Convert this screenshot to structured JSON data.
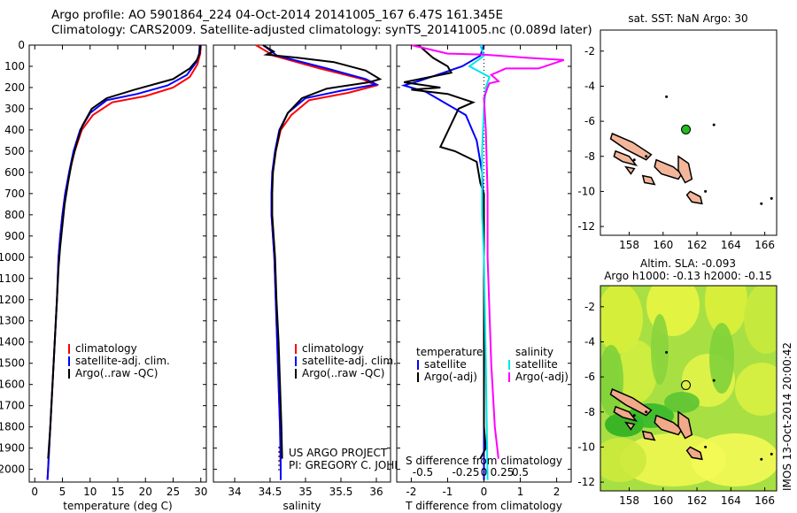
{
  "header": {
    "title_line1": "Argo profile: AO 5901864_224 04-Oct-2014 20141005_167 6.47S 161.345E",
    "title_line2": "Climatology: CARS2009. Satellite-adjusted climatology: synTS_20141005.nc (0.089d later)"
  },
  "chart_data": [
    {
      "type": "line",
      "panel": "temperature",
      "xlabel": "temperature (deg C)",
      "ylabel": "",
      "xlim": [
        -1,
        31
      ],
      "ylim": [
        2060,
        0
      ],
      "y_reversed": true,
      "xticks": [
        0,
        5,
        10,
        15,
        20,
        25,
        30
      ],
      "yticks": [
        0,
        100,
        200,
        300,
        400,
        500,
        600,
        700,
        800,
        900,
        1000,
        1100,
        1200,
        1300,
        1400,
        1500,
        1600,
        1700,
        1800,
        1900,
        2000
      ],
      "legend": {
        "placement": "lower-center",
        "entries": [
          "climatology",
          "satellite-adj. clim.",
          "Argo(..raw -QC)"
        ]
      },
      "series": [
        {
          "name": "climatology",
          "color": "#ff0000",
          "points": [
            [
              30,
              0
            ],
            [
              29.9,
              40
            ],
            [
              29.4,
              90
            ],
            [
              28,
              150
            ],
            [
              25,
              200
            ],
            [
              20,
              240
            ],
            [
              14,
              270
            ],
            [
              10.5,
              330
            ],
            [
              8.5,
              400
            ],
            [
              7.2,
              500
            ],
            [
              6.3,
              600
            ],
            [
              5.5,
              700
            ],
            [
              5,
              800
            ],
            [
              4.6,
              900
            ],
            [
              4.3,
              1000
            ],
            [
              4,
              1200
            ],
            [
              3.6,
              1400
            ],
            [
              3.2,
              1600
            ],
            [
              2.8,
              1800
            ],
            [
              2.4,
              2000
            ],
            [
              2.3,
              2050
            ]
          ]
        },
        {
          "name": "satellite-adj. clim.",
          "color": "#0000ff",
          "points": [
            [
              29.8,
              0
            ],
            [
              29.7,
              40
            ],
            [
              29.2,
              80
            ],
            [
              27.5,
              140
            ],
            [
              24,
              190
            ],
            [
              18.5,
              230
            ],
            [
              13,
              260
            ],
            [
              10,
              320
            ],
            [
              8.2,
              400
            ],
            [
              7,
              500
            ],
            [
              6.2,
              600
            ],
            [
              5.5,
              700
            ],
            [
              5,
              800
            ],
            [
              4.6,
              900
            ],
            [
              4.3,
              1000
            ],
            [
              4,
              1200
            ],
            [
              3.6,
              1400
            ],
            [
              3.2,
              1600
            ],
            [
              2.8,
              1800
            ],
            [
              2.4,
              2000
            ],
            [
              2.3,
              2050
            ]
          ]
        },
        {
          "name": "Argo(..raw -QC)",
          "color": "#000000",
          "points": [
            [
              29.9,
              0
            ],
            [
              29.8,
              40
            ],
            [
              29.3,
              70
            ],
            [
              28,
              110
            ],
            [
              25,
              160
            ],
            [
              18,
              210
            ],
            [
              13,
              250
            ],
            [
              10.3,
              300
            ],
            [
              8.6,
              380
            ],
            [
              7.6,
              460
            ],
            [
              6.7,
              550
            ],
            [
              6,
              650
            ],
            [
              5.4,
              750
            ],
            [
              5,
              850
            ],
            [
              4.6,
              950
            ],
            [
              4.3,
              1050
            ],
            [
              4,
              1200
            ],
            [
              3.6,
              1400
            ],
            [
              3.2,
              1600
            ],
            [
              2.8,
              1800
            ],
            [
              2.4,
              1950
            ]
          ]
        }
      ]
    },
    {
      "type": "line",
      "panel": "salinity",
      "xlabel": "salinity",
      "ylabel": "",
      "xlim": [
        33.7,
        36.2
      ],
      "ylim": [
        2060,
        0
      ],
      "y_reversed": true,
      "xticks": [
        34,
        34.5,
        35,
        35.5,
        36
      ],
      "xtick_labels": [
        "34",
        "34.5",
        "35",
        "35.5",
        "36"
      ],
      "legend": {
        "placement": "lower-center",
        "entries": [
          "climatology",
          "satellite-adj. clim.",
          "Argo(..raw -QC)"
        ]
      },
      "annotations": [
        "US ARGO PROJECT",
        "PI: GREGORY C. JOHNSON"
      ],
      "series": [
        {
          "name": "climatology",
          "color": "#ff0000",
          "points": [
            [
              34.3,
              0
            ],
            [
              34.55,
              50
            ],
            [
              35.2,
              110
            ],
            [
              35.8,
              160
            ],
            [
              36,
              190
            ],
            [
              35.6,
              225
            ],
            [
              35.05,
              260
            ],
            [
              34.8,
              330
            ],
            [
              34.65,
              400
            ],
            [
              34.58,
              500
            ],
            [
              34.54,
              600
            ],
            [
              34.52,
              700
            ],
            [
              34.52,
              800
            ],
            [
              34.54,
              900
            ],
            [
              34.56,
              1000
            ],
            [
              34.58,
              1200
            ],
            [
              34.6,
              1400
            ],
            [
              34.62,
              1600
            ],
            [
              34.64,
              1800
            ],
            [
              34.65,
              2000
            ],
            [
              34.65,
              2050
            ]
          ]
        },
        {
          "name": "satellite-adj. clim.",
          "color": "#0000ff",
          "points": [
            [
              34.4,
              0
            ],
            [
              34.6,
              50
            ],
            [
              35.3,
              110
            ],
            [
              35.85,
              160
            ],
            [
              36,
              185
            ],
            [
              35.5,
              215
            ],
            [
              35,
              250
            ],
            [
              34.75,
              320
            ],
            [
              34.63,
              400
            ],
            [
              34.57,
              500
            ],
            [
              34.53,
              600
            ],
            [
              34.52,
              700
            ],
            [
              34.52,
              800
            ],
            [
              34.54,
              900
            ],
            [
              34.56,
              1000
            ],
            [
              34.58,
              1200
            ],
            [
              34.6,
              1400
            ],
            [
              34.62,
              1600
            ],
            [
              34.64,
              1800
            ],
            [
              34.65,
              2000
            ],
            [
              34.65,
              2050
            ]
          ]
        },
        {
          "name": "Argo(..raw -QC)",
          "color": "#000000",
          "points": [
            [
              34.4,
              0
            ],
            [
              34.55,
              30
            ],
            [
              34.45,
              45
            ],
            [
              34.9,
              60
            ],
            [
              35.4,
              80
            ],
            [
              35.85,
              120
            ],
            [
              36.05,
              160
            ],
            [
              35.9,
              175
            ],
            [
              35.3,
              205
            ],
            [
              34.95,
              250
            ],
            [
              34.75,
              320
            ],
            [
              34.64,
              400
            ],
            [
              34.58,
              500
            ],
            [
              34.54,
              600
            ],
            [
              34.53,
              700
            ],
            [
              34.53,
              800
            ],
            [
              34.55,
              900
            ],
            [
              34.57,
              1000
            ],
            [
              34.59,
              1200
            ],
            [
              34.62,
              1400
            ],
            [
              34.64,
              1600
            ],
            [
              34.66,
              1800
            ],
            [
              34.67,
              1950
            ]
          ]
        }
      ]
    },
    {
      "type": "line",
      "panel": "difference",
      "xlabel": "T difference from climatology",
      "xlabel_top": "S difference from climatology",
      "ylabel": "",
      "xlim": [
        -2.4,
        2.4
      ],
      "ylim": [
        2060,
        0
      ],
      "y_reversed": true,
      "xticks": [
        -2,
        -1,
        0,
        1,
        2
      ],
      "xtick_labels": [
        "-2",
        "-1",
        "0",
        "1",
        "2"
      ],
      "xticks_top_labels": [
        "-0.5",
        "-0.25",
        "0",
        "0.25",
        "0.5"
      ],
      "legend": {
        "placement": "lower-center",
        "groups": [
          "temperature",
          "salinity"
        ],
        "entries": [
          "satellite",
          "Argo(-adj)",
          "satellite",
          "Argo(-adj)"
        ]
      },
      "series": [
        {
          "name": "satellite",
          "group": "temperature",
          "color": "#0000ff",
          "points": [
            [
              0,
              0
            ],
            [
              -0.1,
              50
            ],
            [
              -0.6,
              100
            ],
            [
              -1.8,
              170
            ],
            [
              -2.2,
              190
            ],
            [
              -1.6,
              220
            ],
            [
              -0.5,
              330
            ],
            [
              -0.2,
              450
            ],
            [
              -0.05,
              600
            ],
            [
              0,
              800
            ],
            [
              0,
              1200
            ],
            [
              0,
              2050
            ]
          ]
        },
        {
          "name": "Argo(-adj)",
          "group": "temperature",
          "color": "#000000",
          "points": [
            [
              -1.8,
              0
            ],
            [
              -1.6,
              30
            ],
            [
              -1.4,
              60
            ],
            [
              -1,
              100
            ],
            [
              -0.9,
              130
            ],
            [
              -2.2,
              175
            ],
            [
              -1.2,
              200
            ],
            [
              -2.0,
              210
            ],
            [
              -1.0,
              230
            ],
            [
              -0.3,
              270
            ],
            [
              -0.7,
              300
            ],
            [
              -1.2,
              480
            ],
            [
              -0.8,
              500
            ],
            [
              -0.2,
              550
            ],
            [
              -0.1,
              650
            ],
            [
              0,
              700
            ],
            [
              0,
              1000
            ],
            [
              0,
              1500
            ],
            [
              0,
              1800
            ],
            [
              0.05,
              1900
            ],
            [
              -0.1,
              1950
            ]
          ]
        },
        {
          "name": "satellite",
          "group": "salinity",
          "color": "#00e5e5",
          "points": [
            [
              -0.1,
              0
            ],
            [
              0,
              50
            ],
            [
              -0.4,
              100
            ],
            [
              0.15,
              150
            ],
            [
              0.05,
              200
            ],
            [
              0,
              300
            ],
            [
              -0.05,
              500
            ],
            [
              -0.05,
              800
            ],
            [
              0,
              1000
            ],
            [
              0.05,
              1500
            ],
            [
              0.1,
              2050
            ]
          ]
        },
        {
          "name": "Argo(-adj)",
          "group": "salinity",
          "color": "#ff00ff",
          "points": [
            [
              -2,
              0
            ],
            [
              -1,
              40
            ],
            [
              0,
              45
            ],
            [
              1.2,
              60
            ],
            [
              2.2,
              70
            ],
            [
              1.5,
              110
            ],
            [
              0.6,
              110
            ],
            [
              0.2,
              140
            ],
            [
              0.4,
              170
            ],
            [
              0.15,
              180
            ],
            [
              0.1,
              200
            ],
            [
              0,
              250
            ],
            [
              0.05,
              400
            ],
            [
              0.1,
              700
            ],
            [
              0.1,
              1000
            ],
            [
              0.2,
              1500
            ],
            [
              0.3,
              1800
            ],
            [
              0.4,
              1950
            ]
          ]
        }
      ]
    },
    {
      "type": "scatter",
      "panel": "sst-map",
      "title": "sat. SST: NaN Argo: 30",
      "xlim": [
        156.3,
        166.7
      ],
      "ylim": [
        -12.5,
        -0.8
      ],
      "xticks": [
        158,
        160,
        162,
        164,
        166
      ],
      "yticks": [
        -2,
        -4,
        -6,
        -8,
        -10,
        -12
      ],
      "marker": {
        "lon": 161.345,
        "lat": -6.47,
        "color": "#22bb22"
      }
    },
    {
      "type": "heatmap",
      "panel": "sla-map",
      "title_line1": "Altim. SLA: -0.093",
      "title_line2": "Argo h1000: -0.13 h2000: -0.15",
      "xlim": [
        156.3,
        166.7
      ],
      "ylim": [
        -12.5,
        -0.8
      ],
      "xticks": [
        158,
        160,
        162,
        164,
        166
      ],
      "yticks": [
        -2,
        -4,
        -6,
        -8,
        -10,
        -12
      ],
      "marker": {
        "lon": 161.345,
        "lat": -6.47
      },
      "side_label": "IMOS 13-Oct-2014 20:00:42"
    }
  ]
}
